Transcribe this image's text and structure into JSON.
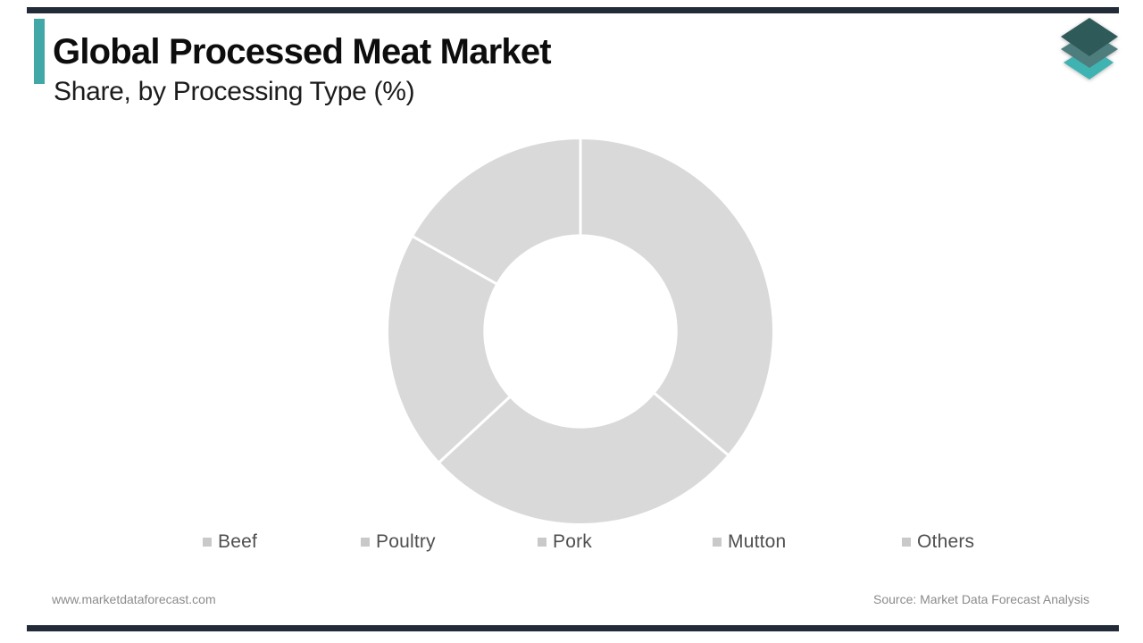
{
  "header": {
    "title": "Global Processed Meat Market",
    "subtitle": "Share, by Processing Type (%)",
    "accent_color": "#41a7a7"
  },
  "frame": {
    "bar_color": "#222c39"
  },
  "logo": {
    "name": "market-data-forecast-logo",
    "colors": {
      "top_layer": "#2e5b5a",
      "middle_layer": "#4d7d7c",
      "bottom_layer": "#3fb3b1"
    }
  },
  "chart_data": {
    "type": "pie",
    "donut": true,
    "title": "Global Processed Meat Market",
    "subtitle": "Share, by Processing Type (%)",
    "categories": [
      "Beef",
      "Poultry",
      "Pork",
      "Mutton",
      "Others"
    ],
    "visible_segments_percent": [
      36.1,
      27.0,
      20.1,
      16.8
    ],
    "start_angle_deg": 0,
    "clockwise": true,
    "inner_radius_ratio": 0.495,
    "slice_color": "#d9d9d9",
    "separator_color": "#ffffff",
    "separator_width": 3,
    "data_labels_shown": false,
    "legend_position": "bottom"
  },
  "legend": {
    "marker_color": "#c9c9c9",
    "items": [
      {
        "label": "Beef"
      },
      {
        "label": "Poultry"
      },
      {
        "label": "Pork"
      },
      {
        "label": "Mutton"
      },
      {
        "label": "Others"
      }
    ]
  },
  "footer": {
    "website": "www.marketdataforecast.com",
    "source": "Source: Market Data Forecast Analysis"
  }
}
